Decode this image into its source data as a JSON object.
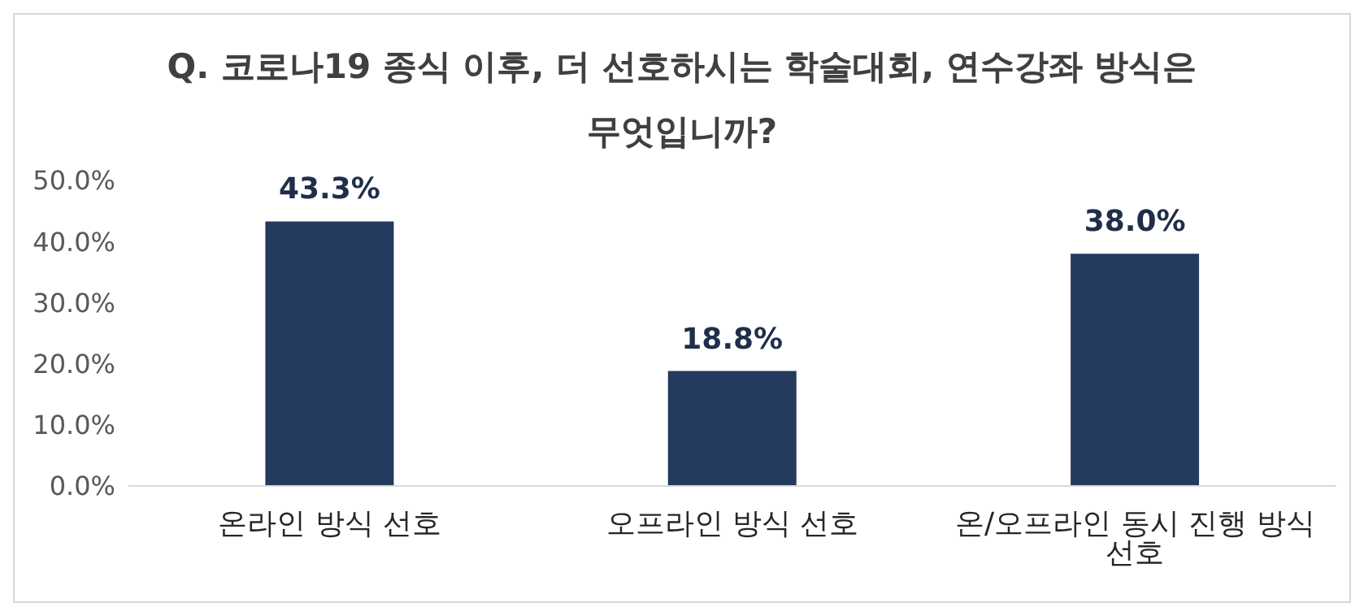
{
  "chart_data": {
    "type": "bar",
    "title": "Q. 코로나19 종식 이후, 더 선호하시는 학술대회, 연수강좌 방식은 무엇입니까?",
    "categories": [
      "온라인 방식 선호",
      "오프라인 방식 선호",
      "온/오프라인 동시 진행 방식 선호"
    ],
    "values": [
      43.3,
      18.8,
      38.0
    ],
    "value_labels": [
      "43.3%",
      "18.8%",
      "38.0%"
    ],
    "color": "#243a5e",
    "ylim": [
      0,
      50
    ],
    "yticks": [
      {
        "value": 0,
        "label": "0.0%"
      },
      {
        "value": 10,
        "label": "10.0%"
      },
      {
        "value": 20,
        "label": "20.0%"
      },
      {
        "value": 30,
        "label": "30.0%"
      },
      {
        "value": 40,
        "label": "40.0%"
      },
      {
        "value": 50,
        "label": "50.0%"
      }
    ],
    "grid": false,
    "legend": false
  }
}
